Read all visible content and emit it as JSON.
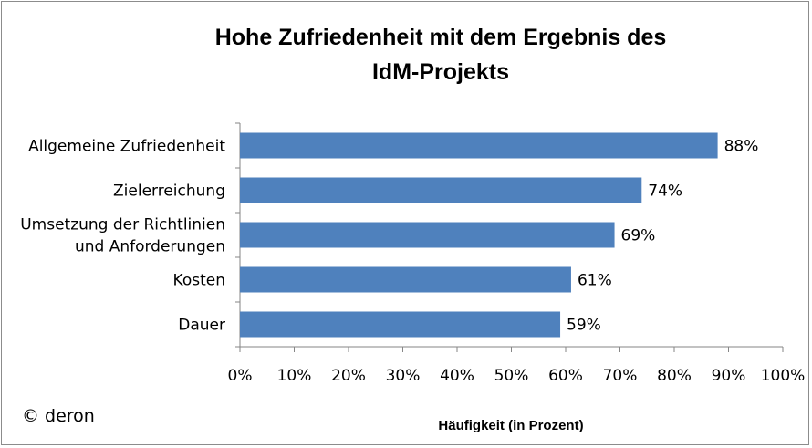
{
  "chart_data": {
    "type": "bar",
    "orientation": "horizontal",
    "title": "Hohe Zufriedenheit mit dem Ergebnis des\nIdM-Projekts",
    "xlabel": "Häufigkeit (in Prozent)",
    "ylabel": "",
    "categories": [
      [
        "Allgemeine Zufriedenheit"
      ],
      [
        "Zielerreichung"
      ],
      [
        "Umsetzung der Richtlinien",
        "und Anforderungen"
      ],
      [
        "Kosten"
      ],
      [
        "Dauer"
      ]
    ],
    "values": [
      88,
      74,
      69,
      61,
      59
    ],
    "data_labels": [
      "88%",
      "74%",
      "69%",
      "61%",
      "59%"
    ],
    "xlim": [
      0,
      100
    ],
    "xticks": [
      "0%",
      "10%",
      "20%",
      "30%",
      "40%",
      "50%",
      "60%",
      "70%",
      "80%",
      "90%",
      "100%"
    ],
    "grid": false,
    "legend": "none",
    "bar_color": "#4f81bd"
  },
  "footer": {
    "copyright": "© deron"
  }
}
